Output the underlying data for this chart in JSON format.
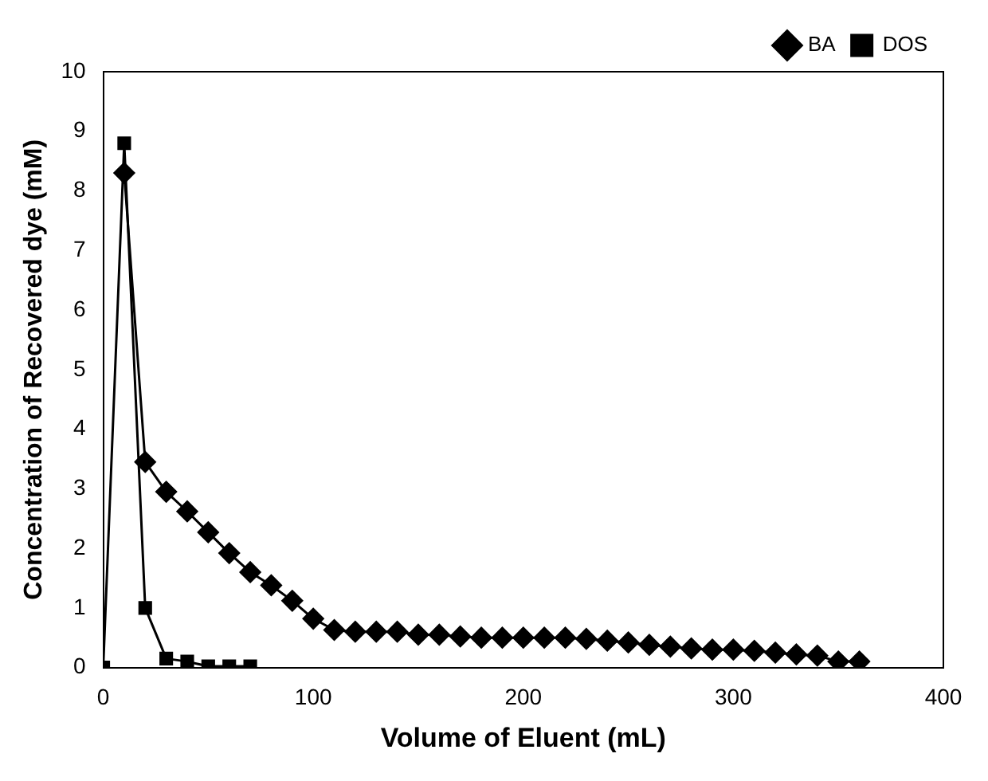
{
  "chart_data": {
    "type": "line",
    "xlabel": "Volume of Eluent (mL)",
    "ylabel": "Concentration of Recovered dye (mM)",
    "xlim": [
      0,
      400
    ],
    "xticks": [
      0,
      100,
      200,
      300,
      400
    ],
    "ylim": [
      0,
      10
    ],
    "yticks": [
      0,
      1,
      2,
      3,
      4,
      5,
      6,
      7,
      8,
      9,
      10
    ],
    "grid": false,
    "legend": "top right",
    "series": [
      {
        "name": "BA",
        "color": "#000000",
        "marker": "diamond",
        "x": [
          10,
          20,
          30,
          40,
          50,
          60,
          70,
          80,
          90,
          100,
          110,
          120,
          130,
          140,
          150,
          160,
          170,
          180,
          190,
          200,
          210,
          220,
          230,
          240,
          250,
          260,
          270,
          280,
          290,
          300,
          310,
          320,
          330,
          340,
          350,
          360
        ],
        "values": [
          8.3,
          3.45,
          2.95,
          2.62,
          2.27,
          1.92,
          1.6,
          1.38,
          1.12,
          0.82,
          0.63,
          0.6,
          0.6,
          0.6,
          0.55,
          0.55,
          0.52,
          0.5,
          0.5,
          0.5,
          0.5,
          0.5,
          0.48,
          0.45,
          0.42,
          0.38,
          0.35,
          0.32,
          0.3,
          0.3,
          0.28,
          0.25,
          0.22,
          0.2,
          0.1,
          0.1
        ]
      },
      {
        "name": "DOS",
        "color": "#000000",
        "marker": "square",
        "x": [
          0,
          10,
          20,
          30,
          40,
          50,
          60,
          70
        ],
        "values": [
          0,
          8.8,
          1.0,
          0.15,
          0.1,
          0.02,
          0.02,
          0.02
        ]
      }
    ]
  }
}
